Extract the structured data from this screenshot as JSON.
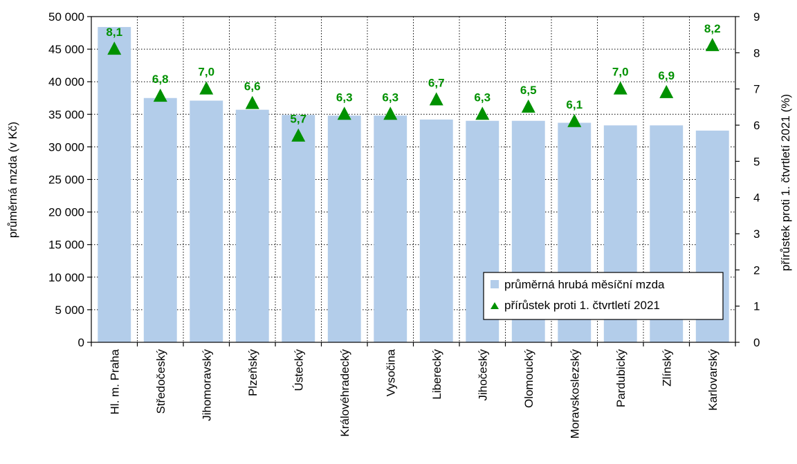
{
  "chart_data": {
    "type": "bar",
    "categories": [
      "Hl. m. Praha",
      "Středočeský",
      "Jihomoravský",
      "Plzeňský",
      "Ústecký",
      "Královéhradecký",
      "Vysočina",
      "Liberecký",
      "Jihočeský",
      "Olomoucký",
      "Moravskoslezský",
      "Pardubický",
      "Zlínský",
      "Karlovarský"
    ],
    "series": [
      {
        "name": "průměrná hrubá měsíční mzda",
        "type": "bar",
        "axis": "left",
        "color": "#B3CDEA",
        "values": [
          48400,
          37500,
          37100,
          35700,
          34900,
          34800,
          34800,
          34200,
          34000,
          34000,
          33700,
          33300,
          33300,
          32500
        ]
      },
      {
        "name": "přírůstek proti 1. čtvrtletí 2021",
        "type": "scatter",
        "axis": "right",
        "marker": "triangle",
        "color": "#009100",
        "values": [
          8.1,
          6.8,
          7.0,
          6.6,
          5.7,
          6.3,
          6.3,
          6.7,
          6.3,
          6.5,
          6.1,
          7.0,
          6.9,
          8.2
        ],
        "labels": [
          "8,1",
          "6,8",
          "7,0",
          "6,6",
          "5,7",
          "6,3",
          "6,3",
          "6,7",
          "6,3",
          "6,5",
          "6,1",
          "7,0",
          "6,9",
          "8,2"
        ]
      }
    ],
    "ylabel": "průměrná mzda (v Kč)",
    "y2label": "přírůstek proti 1. čtvrtletí 2021 (%)",
    "ylim": [
      0,
      50000
    ],
    "y2lim": [
      0,
      9
    ],
    "yticks": [
      0,
      5000,
      10000,
      15000,
      20000,
      25000,
      30000,
      35000,
      40000,
      45000,
      50000
    ],
    "ytick_labels": [
      "0",
      "5 000",
      "10 000",
      "15 000",
      "20 000",
      "25 000",
      "30 000",
      "35 000",
      "40 000",
      "45 000",
      "50 000"
    ],
    "y2ticks": [
      0,
      1,
      2,
      3,
      4,
      5,
      6,
      7,
      8,
      9
    ],
    "y2tick_labels": [
      "0",
      "1",
      "2",
      "3",
      "4",
      "5",
      "6",
      "7",
      "8",
      "9"
    ],
    "grid": "dotted",
    "legend": "bottom-right",
    "legend_entries": [
      "průměrná hrubá měsíční mzda",
      "přírůstek proti 1. čtvrtletí 2021"
    ]
  }
}
